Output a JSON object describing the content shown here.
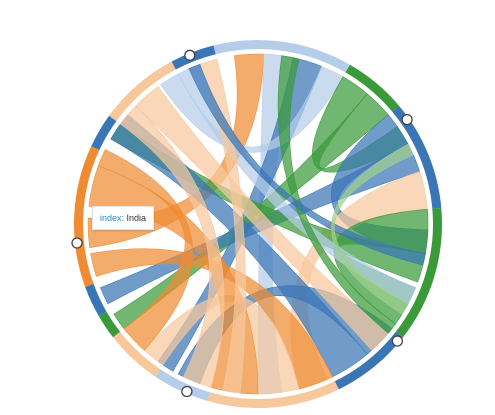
{
  "tooltip": {
    "key": "index:",
    "value": "India"
  },
  "colors": {
    "blue": "#3a76b5",
    "light_blue": "#b5cde9",
    "orange": "#ef8c33",
    "light_orange": "#f6c89c",
    "green": "#3a9a3a",
    "light_green": "#9fd08e"
  },
  "groups": [
    {
      "color": "light_blue",
      "arc": [
        -14,
        30
      ]
    },
    {
      "color": "green",
      "arc": [
        30,
        50
      ]
    },
    {
      "color": "blue",
      "arc": [
        50,
        85
      ]
    },
    {
      "color": "green",
      "arc": [
        85,
        128
      ]
    },
    {
      "color": "blue",
      "arc": [
        128,
        154
      ]
    },
    {
      "color": "light_orange",
      "arc": [
        154,
        196
      ]
    },
    {
      "color": "light_blue",
      "arc": [
        196,
        214
      ]
    },
    {
      "color": "light_orange",
      "arc": [
        214,
        232
      ]
    },
    {
      "color": "green",
      "arc": [
        232,
        240
      ]
    },
    {
      "color": "blue",
      "arc": [
        240,
        250
      ]
    },
    {
      "color": "orange",
      "arc": [
        250,
        295
      ]
    },
    {
      "color": "blue",
      "arc": [
        295,
        306
      ]
    },
    {
      "color": "light_orange",
      "arc": [
        306,
        332
      ]
    },
    {
      "color": "blue",
      "arc": [
        332,
        346
      ]
    }
  ],
  "ribbons": [
    {
      "color": "orange",
      "s": [
        -8,
        2
      ],
      "t": [
        262,
        272
      ]
    },
    {
      "color": "light_blue",
      "s": [
        2,
        12
      ],
      "t": [
        172,
        180
      ]
    },
    {
      "color": "blue",
      "s": [
        12,
        22
      ],
      "t": [
        210,
        216
      ]
    },
    {
      "color": "light_blue",
      "s": [
        22,
        30
      ],
      "t": [
        325,
        332
      ]
    },
    {
      "color": "green",
      "s": [
        30,
        40
      ],
      "t": [
        55,
        62
      ]
    },
    {
      "color": "green",
      "s": [
        40,
        50
      ],
      "t": [
        232,
        238
      ]
    },
    {
      "color": "blue",
      "s": [
        50,
        62
      ],
      "t": [
        92,
        100
      ]
    },
    {
      "color": "blue",
      "s": [
        62,
        72
      ],
      "t": [
        242,
        248
      ]
    },
    {
      "color": "light_orange",
      "s": [
        72,
        85
      ],
      "t": [
        156,
        166
      ]
    },
    {
      "color": "green",
      "s": [
        85,
        100
      ],
      "t": [
        112,
        126
      ]
    },
    {
      "color": "green",
      "s": [
        100,
        110
      ],
      "t": [
        300,
        306
      ]
    },
    {
      "color": "blue",
      "s": [
        128,
        140
      ],
      "t": [
        200,
        208
      ]
    },
    {
      "color": "blue",
      "s": [
        140,
        154
      ],
      "t": [
        300,
        310
      ]
    },
    {
      "color": "orange",
      "s": [
        154,
        166
      ],
      "t": [
        252,
        260
      ]
    },
    {
      "color": "light_orange",
      "s": [
        166,
        180
      ],
      "t": [
        214,
        222
      ]
    },
    {
      "color": "orange",
      "s": [
        180,
        196
      ],
      "t": [
        276,
        290
      ]
    },
    {
      "color": "light_orange",
      "s": [
        196,
        206
      ],
      "t": [
        306,
        314
      ]
    },
    {
      "color": "orange",
      "s": [
        222,
        232
      ],
      "t": [
        290,
        296
      ]
    },
    {
      "color": "light_orange",
      "s": [
        314,
        324
      ],
      "t": [
        130,
        138
      ]
    },
    {
      "color": "light_blue",
      "s": [
        332,
        340
      ],
      "t": [
        112,
        118
      ]
    },
    {
      "color": "light_orange",
      "s": [
        340,
        346
      ],
      "t": [
        186,
        192
      ]
    },
    {
      "color": "green",
      "s": [
        8,
        14
      ],
      "t": [
        126,
        130
      ]
    },
    {
      "color": "blue",
      "s": [
        100,
        104
      ],
      "t": [
        336,
        340
      ]
    },
    {
      "color": "light_green",
      "s": [
        62,
        66
      ],
      "t": [
        118,
        122
      ]
    }
  ],
  "handles": [
    {
      "angle": -22
    },
    {
      "angle": 55
    },
    {
      "angle": 130
    },
    {
      "angle": 203
    },
    {
      "angle": 264
    }
  ]
}
